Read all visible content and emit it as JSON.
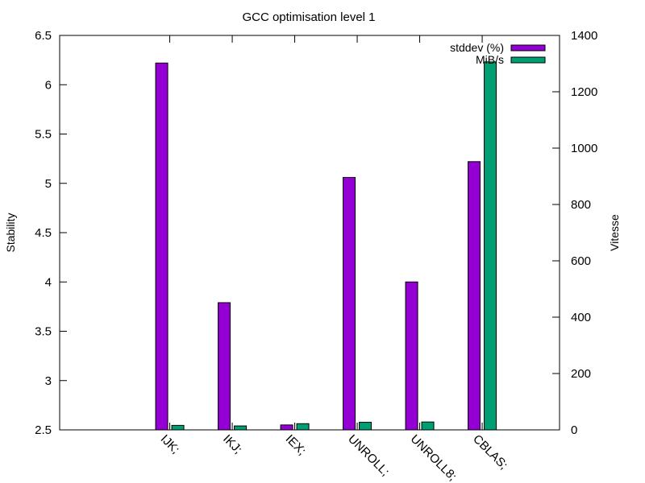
{
  "chart_data": {
    "type": "bar",
    "title": "GCC optimisation level 1",
    "categories": [
      "IJK;",
      "IKJ;",
      "IEX;",
      "UNROLL;",
      "UNROLL8;",
      "CBLAS;"
    ],
    "series": [
      {
        "name": "stddev (%)",
        "axis": "left",
        "color": "#9400d3",
        "values": [
          6.22,
          3.79,
          2.55,
          5.06,
          4.0,
          5.22
        ]
      },
      {
        "name": "MiB/s",
        "axis": "right",
        "color": "#009e73",
        "values": [
          16,
          14,
          22,
          27,
          28,
          1306
        ]
      }
    ],
    "ylabel": "Stability",
    "y2label": "Vitesse",
    "ylim": [
      2.5,
      6.5
    ],
    "y2lim": [
      0,
      1400
    ],
    "yticks": [
      "2.5",
      "3",
      "3.5",
      "4",
      "4.5",
      "5",
      "5.5",
      "6",
      "6.5"
    ],
    "y2ticks": [
      "0",
      "200",
      "400",
      "600",
      "800",
      "1000",
      "1200",
      "1400"
    ],
    "grid": false,
    "legend": "top-right"
  }
}
